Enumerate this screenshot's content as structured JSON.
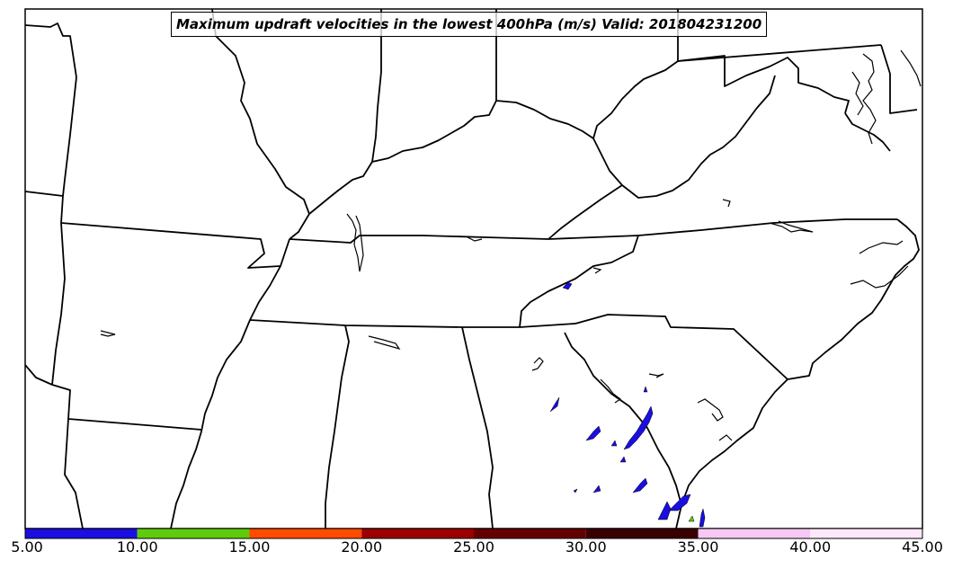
{
  "title": "Maximum updraft velocities in the lowest 400hPa (m/s) Valid: 201804231200",
  "colorbar": {
    "ticks": [
      "5.00",
      "10.00",
      "15.00",
      "20.00",
      "25.00",
      "30.00",
      "35.00",
      "40.00",
      "45.00"
    ],
    "segments": [
      {
        "from": 5,
        "to": 10,
        "color": "#1a0fe0"
      },
      {
        "from": 10,
        "to": 15,
        "color": "#5ecc0a"
      },
      {
        "from": 15,
        "to": 20,
        "color": "#ff4a00"
      },
      {
        "from": 20,
        "to": 25,
        "color": "#9c0000"
      },
      {
        "from": 25,
        "to": 30,
        "color": "#650000"
      },
      {
        "from": 30,
        "to": 35,
        "color": "#3a0000"
      },
      {
        "from": 35,
        "to": 40,
        "color": "#f6c8f4"
      },
      {
        "from": 40,
        "to": 45,
        "color": "#fde8fb"
      }
    ]
  },
  "colors": {
    "border": "#000000",
    "updraft": "#1a0fe0",
    "updraft_high": "#5ecc0a"
  }
}
